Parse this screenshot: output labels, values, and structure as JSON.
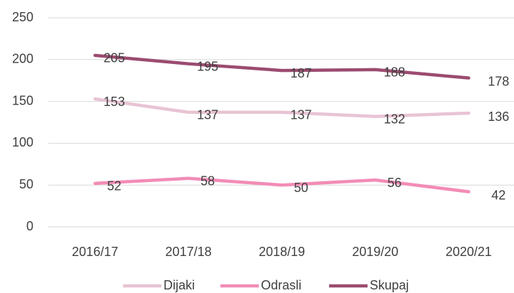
{
  "chart_data": {
    "type": "line",
    "categories": [
      "2016/17",
      "2017/18",
      "2018/19",
      "2019/20",
      "2020/21"
    ],
    "series": [
      {
        "name": "Dijaki",
        "color": "#e8c4d4",
        "values": [
          153,
          137,
          137,
          132,
          136
        ]
      },
      {
        "name": "Odrasli",
        "color": "#f28cb6",
        "values": [
          52,
          58,
          50,
          56,
          42
        ]
      },
      {
        "name": "Skupaj",
        "color": "#9c4b70",
        "values": [
          205,
          195,
          187,
          188,
          178
        ]
      }
    ],
    "ylim": [
      0,
      250
    ],
    "yticks": [
      0,
      50,
      100,
      150,
      200,
      250
    ],
    "grid": true,
    "legend": "bottom"
  }
}
